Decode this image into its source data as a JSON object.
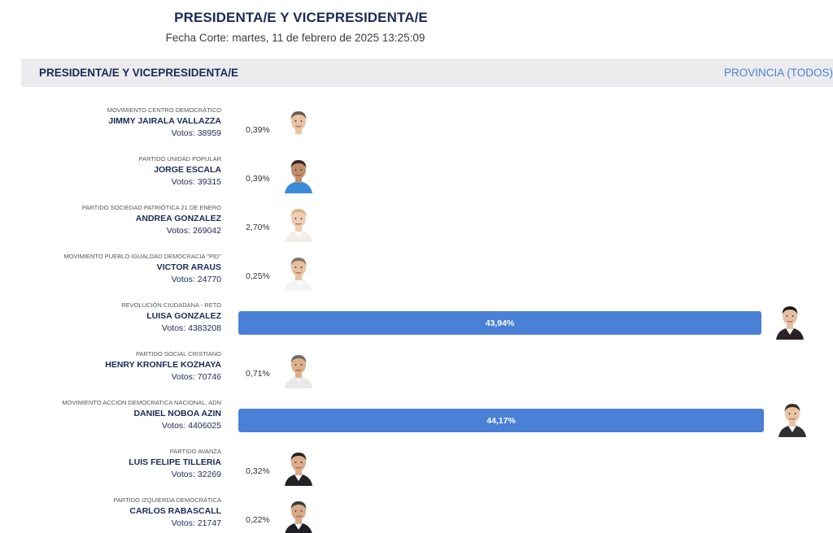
{
  "header": {
    "title": "PRESIDENTA/E Y VICEPRESIDENTA/E",
    "cut_date": "Fecha Corte: martes, 11 de febrero de 2025 13:25:09"
  },
  "section": {
    "title": "PRESIDENTA/E Y VICEPRESIDENTA/E",
    "filter_label": "PROVINCIA (TODOS)"
  },
  "votes_label": "Votos:",
  "colors": {
    "bar": "#4a80d6",
    "title": "#1b2a57",
    "link": "#4a80d6"
  },
  "candidates": [
    {
      "party": "MOVIMIENTO CENTRO DEMOCRÁTICO",
      "name": "JIMMY JAIRALA VALLAZZA",
      "votes": "38959",
      "pct": "0,39%",
      "share": 0.0039,
      "skin": "#e7c2a3",
      "hair": "#6a5a50",
      "shirt": "#ffffff",
      "jacket": "#ffffff",
      "icon": "candidate-photo"
    },
    {
      "party": "PARTIDO UNIDAD POPULAR",
      "name": "JORGE ESCALA",
      "votes": "39315",
      "pct": "0,39%",
      "share": 0.0039,
      "skin": "#c08e6a",
      "hair": "#3a2a22",
      "shirt": "#3b8ad8",
      "jacket": "#3b8ad8",
      "icon": "candidate-photo"
    },
    {
      "party": "PARTIDO SOCIEDAD PATRIÓTICA 21 DE ENERO",
      "name": "ANDREA GONZALEZ",
      "votes": "269042",
      "pct": "2,70%",
      "share": 0.027,
      "skin": "#efcdb2",
      "hair": "#d9b48a",
      "shirt": "#ffffff",
      "jacket": "#f2efe9",
      "icon": "candidate-photo"
    },
    {
      "party": "MOVIMIENTO PUEBLO IGUALDAD DEMOCRACIA \"PID\"",
      "name": "VICTOR ARAUS",
      "votes": "24770",
      "pct": "0,25%",
      "share": 0.0025,
      "skin": "#e6c1a0",
      "hair": "#8a7664",
      "shirt": "#ffffff",
      "jacket": "#f4f4f4",
      "icon": "candidate-photo"
    },
    {
      "party": "REVOLUCIÓN CIUDADANA - RETO",
      "name": "LUISA GONZALEZ",
      "votes": "4383208",
      "pct": "43,94%",
      "share": 0.4394,
      "skin": "#e5bfa3",
      "hair": "#1e1a1a",
      "shirt": "#ffffff",
      "jacket": "#2a2226",
      "icon": "candidate-photo"
    },
    {
      "party": "PARTIDO SOCIAL CRISTIANO",
      "name": "HENRY KRONFLE KOZHAYA",
      "votes": "70746",
      "pct": "0,71%",
      "share": 0.0071,
      "skin": "#ddb08c",
      "hair": "#6b6b6b",
      "shirt": "#f2f2f2",
      "jacket": "#e8e8e8",
      "icon": "candidate-photo"
    },
    {
      "party": "MOVIMIENTO ACCION DEMOCRATICA NACIONAL, ADN",
      "name": "DANIEL NOBOA AZIN",
      "votes": "4406025",
      "pct": "44,17%",
      "share": 0.4417,
      "skin": "#e8c4a4",
      "hair": "#3d2e24",
      "shirt": "#ffffff",
      "jacket": "#2f2f33",
      "icon": "candidate-photo"
    },
    {
      "party": "PARTIDO AVANZA",
      "name": "LUIS FELIPE TILLERIA",
      "votes": "32269",
      "pct": "0,32%",
      "share": 0.0032,
      "skin": "#d9ad8b",
      "hair": "#2d2320",
      "shirt": "#ffffff",
      "jacket": "#232326",
      "icon": "candidate-photo"
    },
    {
      "party": "PARTIDO IZQUIERDA DEMOCRÁTICA",
      "name": "CARLOS RABASCALL",
      "votes": "21747",
      "pct": "0,22%",
      "share": 0.0022,
      "skin": "#d8aa88",
      "hair": "#3a3a3a",
      "shirt": "#ffffff",
      "jacket": "#1f1f24",
      "icon": "candidate-photo"
    }
  ]
}
